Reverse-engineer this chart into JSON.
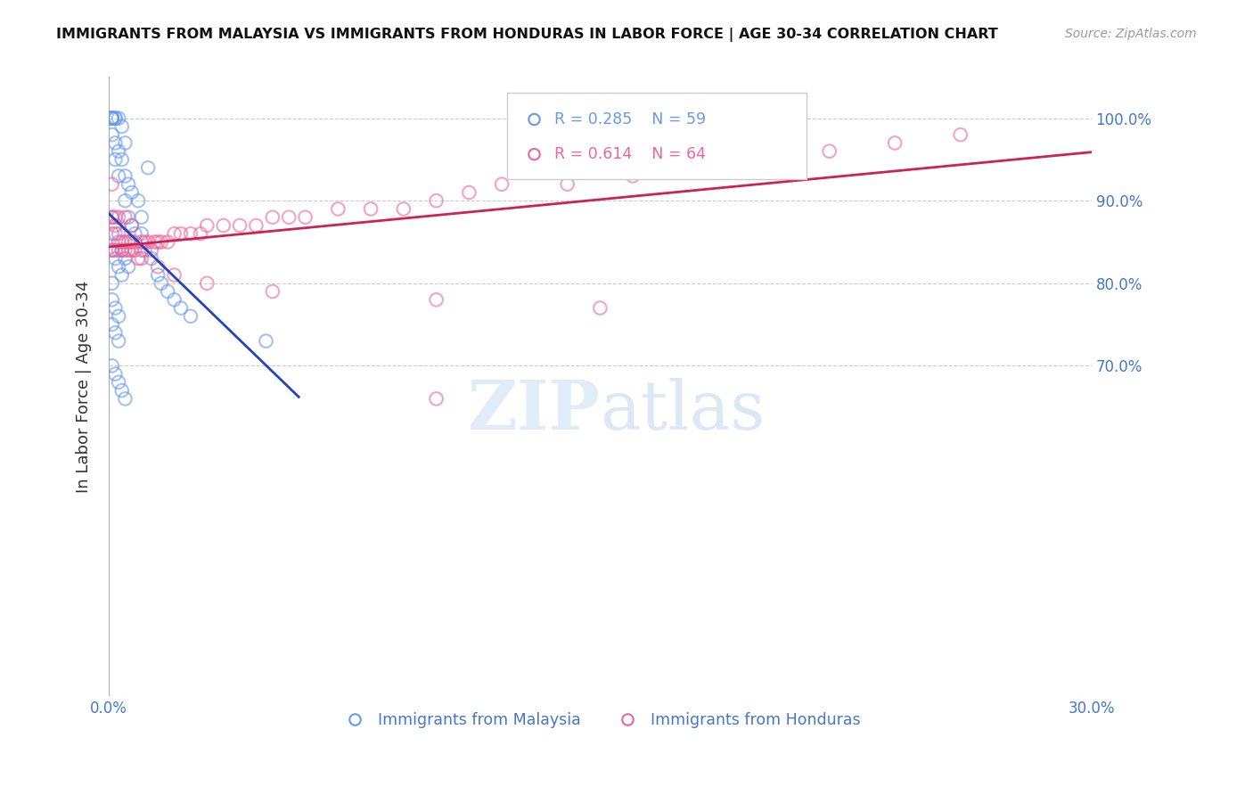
{
  "title": "IMMIGRANTS FROM MALAYSIA VS IMMIGRANTS FROM HONDURAS IN LABOR FORCE | AGE 30-34 CORRELATION CHART",
  "source": "Source: ZipAtlas.com",
  "ylabel": "In Labor Force | Age 30-34",
  "xlim": [
    0.0,
    0.3
  ],
  "ylim": [
    0.3,
    1.05
  ],
  "ytick_positions": [
    0.7,
    0.8,
    0.9,
    1.0
  ],
  "ytick_labels": [
    "70.0%",
    "80.0%",
    "90.0%",
    "100.0%"
  ],
  "xtick_positions": [
    0.0,
    0.05,
    0.1,
    0.15,
    0.2,
    0.25,
    0.3
  ],
  "xtick_labels": [
    "0.0%",
    "",
    "",
    "",
    "",
    "",
    "30.0%"
  ],
  "malaysia_color": "#6699ee",
  "honduras_color": "#ee6699",
  "trendline_malaysia_color": "#2244bb",
  "trendline_honduras_color": "#cc2255",
  "malaysia_R": 0.285,
  "malaysia_N": 59,
  "honduras_R": 0.614,
  "honduras_N": 64,
  "tick_color": "#4477cc",
  "grid_color": "#cccccc",
  "title_color": "#111111",
  "ylabel_color": "#333333",
  "source_color": "#999999",
  "watermark_color": "#d0e4f7",
  "background_color": "#ffffff",
  "malaysia_scatter_x": [
    0.001,
    0.001,
    0.001,
    0.001,
    0.001,
    0.001,
    0.001,
    0.002,
    0.002,
    0.002,
    0.002,
    0.003,
    0.003,
    0.003,
    0.004,
    0.004,
    0.005,
    0.005,
    0.005,
    0.006,
    0.006,
    0.007,
    0.007,
    0.008,
    0.009,
    0.01,
    0.01,
    0.011,
    0.012,
    0.013,
    0.001,
    0.002,
    0.003,
    0.004,
    0.005,
    0.006,
    0.001,
    0.002,
    0.003,
    0.004,
    0.001,
    0.001,
    0.002,
    0.003,
    0.015,
    0.016,
    0.018,
    0.02,
    0.022,
    0.025,
    0.048,
    0.001,
    0.002,
    0.003,
    0.001,
    0.002,
    0.003,
    0.004,
    0.005
  ],
  "malaysia_scatter_y": [
    1.0,
    1.0,
    1.0,
    1.0,
    1.0,
    1.0,
    0.98,
    1.0,
    1.0,
    0.97,
    0.95,
    1.0,
    0.96,
    0.93,
    0.99,
    0.95,
    0.97,
    0.93,
    0.9,
    0.92,
    0.88,
    0.91,
    0.87,
    0.86,
    0.9,
    0.88,
    0.86,
    0.84,
    0.94,
    0.83,
    0.88,
    0.86,
    0.85,
    0.84,
    0.83,
    0.82,
    0.84,
    0.83,
    0.82,
    0.81,
    0.8,
    0.78,
    0.77,
    0.76,
    0.81,
    0.8,
    0.79,
    0.78,
    0.77,
    0.76,
    0.73,
    0.75,
    0.74,
    0.73,
    0.7,
    0.69,
    0.68,
    0.67,
    0.66
  ],
  "honduras_scatter_x": [
    0.001,
    0.001,
    0.001,
    0.002,
    0.002,
    0.003,
    0.003,
    0.004,
    0.004,
    0.005,
    0.005,
    0.006,
    0.006,
    0.007,
    0.007,
    0.008,
    0.008,
    0.009,
    0.01,
    0.01,
    0.011,
    0.012,
    0.013,
    0.014,
    0.015,
    0.016,
    0.018,
    0.02,
    0.022,
    0.025,
    0.028,
    0.03,
    0.035,
    0.04,
    0.045,
    0.05,
    0.055,
    0.06,
    0.07,
    0.08,
    0.09,
    0.1,
    0.11,
    0.12,
    0.14,
    0.16,
    0.18,
    0.2,
    0.22,
    0.24,
    0.26,
    0.001,
    0.002,
    0.003,
    0.005,
    0.007,
    0.01,
    0.015,
    0.02,
    0.03,
    0.05,
    0.1,
    0.15,
    0.1
  ],
  "honduras_scatter_y": [
    0.84,
    0.86,
    0.88,
    0.84,
    0.87,
    0.84,
    0.86,
    0.85,
    0.84,
    0.85,
    0.84,
    0.85,
    0.84,
    0.85,
    0.84,
    0.85,
    0.84,
    0.83,
    0.84,
    0.85,
    0.85,
    0.85,
    0.84,
    0.85,
    0.85,
    0.85,
    0.85,
    0.86,
    0.86,
    0.86,
    0.86,
    0.87,
    0.87,
    0.87,
    0.87,
    0.88,
    0.88,
    0.88,
    0.89,
    0.89,
    0.89,
    0.9,
    0.91,
    0.92,
    0.92,
    0.93,
    0.94,
    0.95,
    0.96,
    0.97,
    0.98,
    0.92,
    0.88,
    0.88,
    0.88,
    0.87,
    0.83,
    0.82,
    0.81,
    0.8,
    0.79,
    0.78,
    0.77,
    0.66
  ]
}
